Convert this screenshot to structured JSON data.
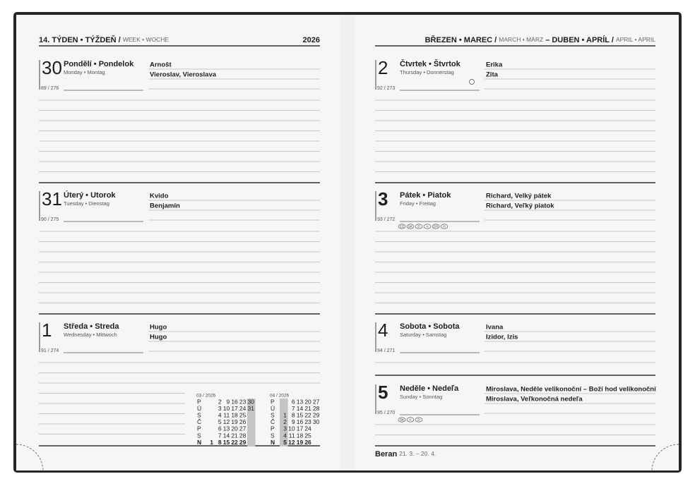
{
  "left_page": {
    "header": {
      "title": "14. TÝDEN • TÝŽDEŇ /",
      "subtitle": "WEEK • WOCHE",
      "year": "2026"
    },
    "days": [
      {
        "number": 30,
        "name": "Pondělí • Pondelok",
        "name_sub": "Monday • Montag",
        "count": "89 / 276",
        "names": [
          "Arnošt",
          "Vieroslav, Vieroslava"
        ]
      },
      {
        "number": 31,
        "name": "Úterý • Utorok",
        "name_sub": "Tuesday • Dienstag",
        "count": "90 / 275",
        "names": [
          "Kvido",
          "Benjamín"
        ]
      },
      {
        "number": 1,
        "name": "Středa • Streda",
        "name_sub": "Wednesday • Mittwoch",
        "count": "91 / 274",
        "names": [
          "Hugo",
          "Hugo"
        ]
      }
    ],
    "mini_calendars": [
      {
        "title": "03 / 2026",
        "rows": [
          {
            "weekday": "P",
            "days": [
              null,
              2,
              9,
              16,
              23,
              30
            ]
          },
          {
            "weekday": "Ú",
            "days": [
              null,
              3,
              10,
              17,
              24,
              31
            ]
          },
          {
            "weekday": "S",
            "days": [
              null,
              4,
              11,
              18,
              25,
              null
            ]
          },
          {
            "weekday": "Č",
            "days": [
              null,
              5,
              12,
              19,
              26,
              null
            ]
          },
          {
            "weekday": "P",
            "days": [
              null,
              6,
              13,
              20,
              27,
              null
            ]
          },
          {
            "weekday": "S",
            "days": [
              null,
              7,
              14,
              21,
              28,
              null
            ]
          },
          {
            "weekday": "N",
            "days": [
              1,
              8,
              15,
              22,
              29,
              null
            ]
          }
        ]
      },
      {
        "title": "04 / 2026",
        "rows": [
          {
            "weekday": "P",
            "days": [
              null,
              6,
              13,
              20,
              27
            ]
          },
          {
            "weekday": "Ú",
            "days": [
              null,
              7,
              14,
              21,
              28
            ]
          },
          {
            "weekday": "S",
            "days": [
              1,
              8,
              15,
              22,
              29
            ]
          },
          {
            "weekday": "Č",
            "days": [
              2,
              9,
              16,
              23,
              30
            ]
          },
          {
            "weekday": "P",
            "days": [
              3,
              10,
              17,
              24,
              null
            ]
          },
          {
            "weekday": "S",
            "days": [
              4,
              11,
              18,
              25,
              null
            ]
          },
          {
            "weekday": "N",
            "days": [
              5,
              12,
              19,
              26,
              null
            ]
          }
        ]
      }
    ]
  },
  "right_page": {
    "header": {
      "months": "BŘEZEN • MAREC /",
      "months_sub": "MARCH • MÄRZ",
      "months2": "– DUBEN • APRÍL /",
      "months2_sub": "APRIL • APRIL"
    },
    "days": [
      {
        "number": 2,
        "name": "Čtvrtek • Štvrtok",
        "name_sub": "Thursday • Donnerstag",
        "count": "92 / 273",
        "names": [
          "Erika",
          "Zita"
        ]
      },
      {
        "number": 3,
        "name": "Pátek • Piatok",
        "name_sub": "Friday • Freitag",
        "count": "93 / 272",
        "names": [
          "Richard, Velký pátek",
          "Richard, Veľký piatok"
        ],
        "icons": [
          "CZ",
          "SK",
          "D",
          "A",
          "CH",
          "H"
        ]
      },
      {
        "number": 4,
        "name": "Sobota • Sobota",
        "name_sub": "Saturday • Samstag",
        "count": "94 / 271",
        "names": [
          "Ivana",
          "Izidor, Izis"
        ]
      },
      {
        "number": 5,
        "name": "Neděle • Nedeľa",
        "name_sub": "Sunday • Sonntag",
        "count": "95 / 270",
        "names": [
          "Miroslava, Neděle velikonoční – Boží hod velikonoční",
          "Miroslava, Veľkonočná nedeľa"
        ],
        "icons": [
          "SK",
          "A",
          "D"
        ]
      }
    ],
    "footer": {
      "sign": "Beran",
      "dates": "21. 3. – 20. 4."
    }
  }
}
